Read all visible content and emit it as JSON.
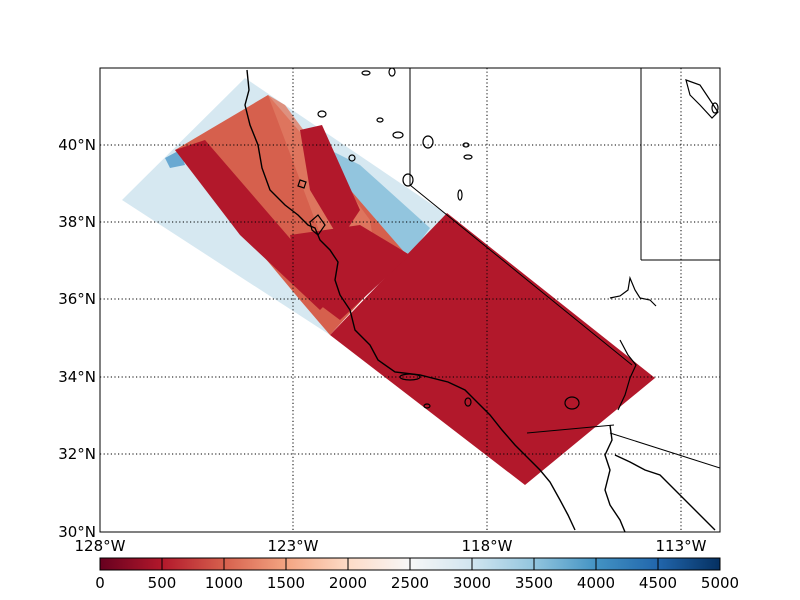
{
  "map": {
    "lat_labels": [
      "40°N",
      "38°N",
      "36°N",
      "34°N",
      "32°N",
      "30°N"
    ],
    "lon_labels": [
      "128°W",
      "123°W",
      "118°W",
      "113°W"
    ],
    "extent": {
      "lon_min": -128,
      "lon_max": -112,
      "lat_min": 30,
      "lat_max": 42
    }
  },
  "colorbar": {
    "labels": [
      "0",
      "500",
      "1000",
      "1500",
      "2000",
      "2500",
      "3000",
      "3500",
      "4000",
      "4500",
      "5000"
    ],
    "min": 0,
    "max": 5000,
    "colormap": "RdBu",
    "stops": [
      "#67001f",
      "#b2182b",
      "#d6604d",
      "#f4a582",
      "#fddbc7",
      "#f7f7f7",
      "#d1e5f0",
      "#92c5de",
      "#4393c3",
      "#2166ac",
      "#053061"
    ]
  },
  "colors": {
    "dominant_value": "#b2182b",
    "mid_value": "#d6604d",
    "light_blue": "#d1e5f0",
    "mid_blue": "#92c5de"
  }
}
